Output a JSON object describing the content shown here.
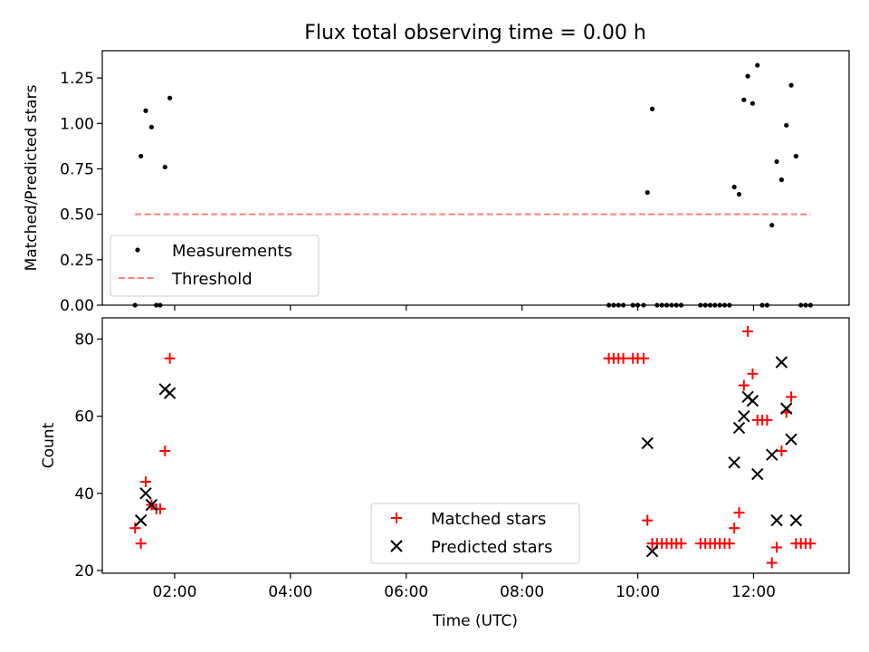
{
  "chart_data": [
    {
      "type": "scatter",
      "title": "Flux total observing time = 0.00 h",
      "xlabel": "",
      "ylabel": "Matched/Predicted stars",
      "ylim": [
        0,
        1.4
      ],
      "xlim_hours": [
        0.75,
        13.65
      ],
      "yticks": [
        "0.00",
        "0.25",
        "0.50",
        "0.75",
        "1.00",
        "1.25"
      ],
      "grid": false,
      "legend_position": "lower-left",
      "series": [
        {
          "name": "Measurements",
          "marker": "dot",
          "color": "#000000",
          "points": [
            [
              "01:19",
              0.0
            ],
            [
              "01:25",
              0.82
            ],
            [
              "01:30",
              1.07
            ],
            [
              "01:36",
              0.98
            ],
            [
              "01:41",
              0.0
            ],
            [
              "01:45",
              0.0
            ],
            [
              "01:50",
              0.76
            ],
            [
              "01:55",
              1.14
            ],
            [
              "09:30",
              0.0
            ],
            [
              "09:35",
              0.0
            ],
            [
              "09:40",
              0.0
            ],
            [
              "09:45",
              0.0
            ],
            [
              "09:55",
              0.0
            ],
            [
              "10:00",
              0.0
            ],
            [
              "10:06",
              0.0
            ],
            [
              "10:10",
              0.62
            ],
            [
              "10:15",
              1.08
            ],
            [
              "10:20",
              0.0
            ],
            [
              "10:25",
              0.0
            ],
            [
              "10:30",
              0.0
            ],
            [
              "10:35",
              0.0
            ],
            [
              "10:40",
              0.0
            ],
            [
              "10:45",
              0.0
            ],
            [
              "11:05",
              0.0
            ],
            [
              "11:10",
              0.0
            ],
            [
              "11:15",
              0.0
            ],
            [
              "11:20",
              0.0
            ],
            [
              "11:25",
              0.0
            ],
            [
              "11:30",
              0.0
            ],
            [
              "11:35",
              0.0
            ],
            [
              "11:40",
              0.65
            ],
            [
              "11:45",
              0.61
            ],
            [
              "11:50",
              1.13
            ],
            [
              "11:54",
              1.26
            ],
            [
              "11:59",
              1.11
            ],
            [
              "12:04",
              1.32
            ],
            [
              "12:09",
              0.0
            ],
            [
              "12:14",
              0.0
            ],
            [
              "12:19",
              0.44
            ],
            [
              "12:24",
              0.79
            ],
            [
              "12:29",
              0.69
            ],
            [
              "12:34",
              0.99
            ],
            [
              "12:39",
              1.21
            ],
            [
              "12:44",
              0.82
            ],
            [
              "12:49",
              0.0
            ],
            [
              "12:54",
              0.0
            ],
            [
              "12:59",
              0.0
            ]
          ]
        },
        {
          "name": "Threshold",
          "marker": "dashed-line",
          "color": "#ff7f7f",
          "points": [
            [
              "01:19",
              0.5
            ],
            [
              "12:59",
              0.5
            ]
          ]
        }
      ]
    },
    {
      "type": "scatter",
      "title": "",
      "xlabel": "Time (UTC)",
      "ylabel": "Count",
      "ylim": [
        19.3,
        85.5
      ],
      "xlim_hours": [
        0.75,
        13.65
      ],
      "yticks": [
        "20",
        "40",
        "60",
        "80"
      ],
      "xticks": [
        "02:00",
        "04:00",
        "06:00",
        "08:00",
        "10:00",
        "12:00"
      ],
      "grid": false,
      "legend_position": "lower-center",
      "series": [
        {
          "name": "Matched stars",
          "marker": "plus",
          "color": "#ff0000",
          "points": [
            [
              "01:19",
              31
            ],
            [
              "01:25",
              27
            ],
            [
              "01:30",
              43
            ],
            [
              "01:36",
              37
            ],
            [
              "01:41",
              36
            ],
            [
              "01:45",
              36
            ],
            [
              "01:50",
              51
            ],
            [
              "01:55",
              75
            ],
            [
              "09:30",
              75
            ],
            [
              "09:35",
              75
            ],
            [
              "09:40",
              75
            ],
            [
              "09:45",
              75
            ],
            [
              "09:55",
              75
            ],
            [
              "10:00",
              75
            ],
            [
              "10:06",
              75
            ],
            [
              "10:10",
              33
            ],
            [
              "10:15",
              27
            ],
            [
              "10:20",
              27
            ],
            [
              "10:25",
              27
            ],
            [
              "10:30",
              27
            ],
            [
              "10:35",
              27
            ],
            [
              "10:40",
              27
            ],
            [
              "10:45",
              27
            ],
            [
              "11:05",
              27
            ],
            [
              "11:10",
              27
            ],
            [
              "11:15",
              27
            ],
            [
              "11:20",
              27
            ],
            [
              "11:25",
              27
            ],
            [
              "11:30",
              27
            ],
            [
              "11:35",
              27
            ],
            [
              "11:40",
              31
            ],
            [
              "11:45",
              35
            ],
            [
              "11:50",
              68
            ],
            [
              "11:54",
              82
            ],
            [
              "11:59",
              71
            ],
            [
              "12:04",
              59
            ],
            [
              "12:09",
              59
            ],
            [
              "12:14",
              59
            ],
            [
              "12:19",
              22
            ],
            [
              "12:24",
              26
            ],
            [
              "12:29",
              51
            ],
            [
              "12:34",
              61
            ],
            [
              "12:39",
              65
            ],
            [
              "12:44",
              27
            ],
            [
              "12:49",
              27
            ],
            [
              "12:54",
              27
            ],
            [
              "12:59",
              27
            ]
          ]
        },
        {
          "name": "Predicted stars",
          "marker": "x",
          "color": "#000000",
          "points": [
            [
              "01:25",
              33
            ],
            [
              "01:30",
              40
            ],
            [
              "01:36",
              37
            ],
            [
              "01:50",
              67
            ],
            [
              "01:55",
              66
            ],
            [
              "10:10",
              53
            ],
            [
              "10:15",
              25
            ],
            [
              "11:40",
              48
            ],
            [
              "11:45",
              57
            ],
            [
              "11:50",
              60
            ],
            [
              "11:54",
              65
            ],
            [
              "11:59",
              64
            ],
            [
              "12:04",
              45
            ],
            [
              "12:19",
              50
            ],
            [
              "12:24",
              33
            ],
            [
              "12:29",
              74
            ],
            [
              "12:34",
              62
            ],
            [
              "12:39",
              54
            ],
            [
              "12:44",
              33
            ]
          ]
        }
      ]
    }
  ]
}
